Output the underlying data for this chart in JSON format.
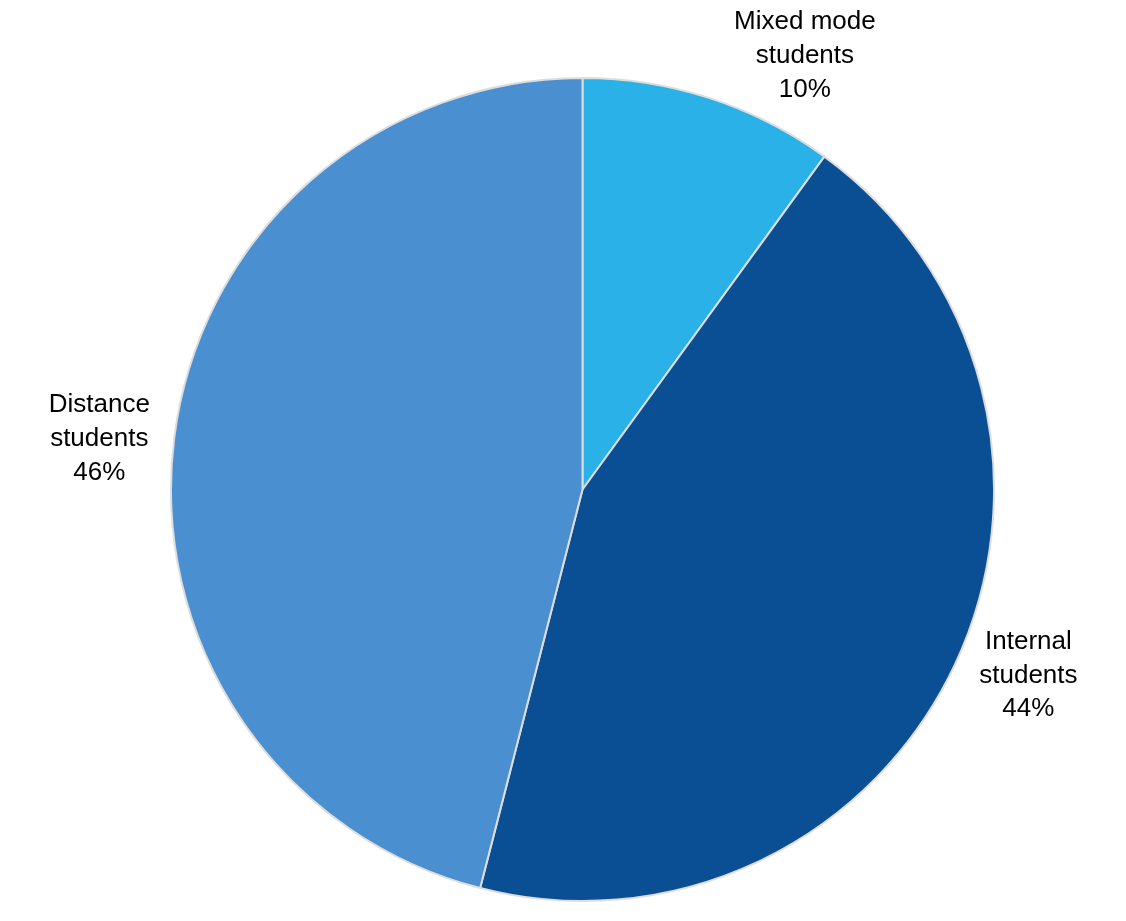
{
  "chart_data": {
    "type": "pie",
    "categories": [
      "Mixed mode students",
      "Internal students",
      "Distance students"
    ],
    "values": [
      10,
      44,
      46
    ],
    "value_labels": [
      "10%",
      "44%",
      "46%"
    ],
    "colors": [
      "#29b1e8",
      "#0a4f94",
      "#4a8fd0"
    ],
    "legend": false
  }
}
